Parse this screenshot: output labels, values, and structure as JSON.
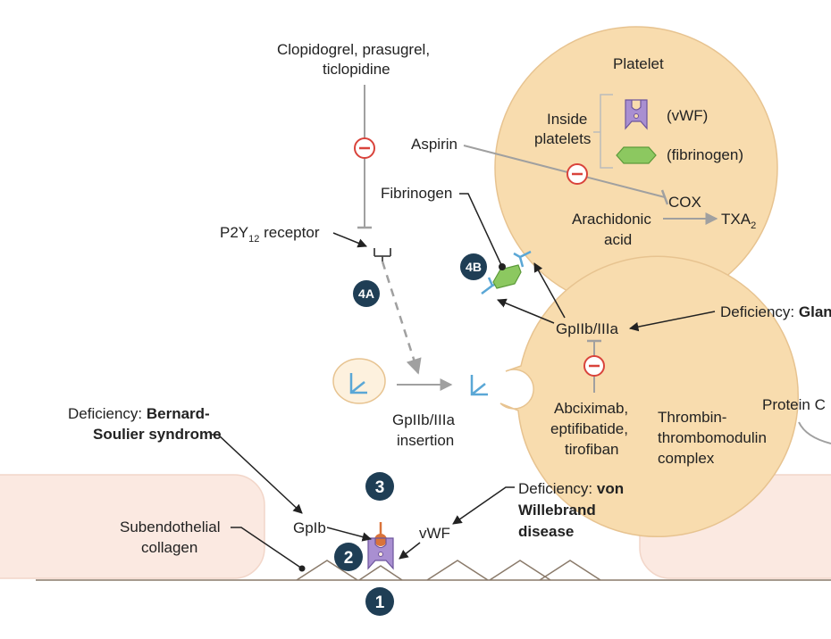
{
  "colors": {
    "platelet_fill": "#f8dcae",
    "cell_fill": "#fbe9e1",
    "inhibitor_red": "#d9433b",
    "step_badge": "#1f3e55",
    "receptor_blue": "#5aa7d6",
    "vwf_purple": "#a98fd1",
    "fibrinogen_green": "#8cc860",
    "arrow_gray": "#a0a0a0",
    "connector_orange": "#d9733a"
  },
  "labels": {
    "clopidogrel_line1": "Clopidogrel, prasugrel,",
    "clopidogrel_line2": "ticlopidine",
    "platelet_title": "Platelet",
    "inside_line1": "Inside",
    "inside_line2": "platelets",
    "vwf_granule": "(vWF)",
    "fibrinogen_granule": "(fibrinogen)",
    "aspirin": "Aspirin",
    "cox": "COX",
    "arachidonic_line1": "Arachidonic",
    "arachidonic_line2": "acid",
    "txa2_main": "TXA",
    "txa2_sub": "2",
    "fibrinogen": "Fibrinogen",
    "p2y12_main": "P2Y",
    "p2y12_sub": "12",
    "p2y12_rest": " receptor",
    "deficiency_prefix": "Deficiency: ",
    "glanzmann_bold": "Glanzmann thrombasthenia",
    "gp2b3a": "GpIIb/IIIa",
    "insertion_line1": "GpIIb/IIIa",
    "insertion_line2": "insertion",
    "abciximab_line1": "Abciximab,",
    "abciximab_line2": "eptifibatide,",
    "abciximab_line3": "tirofiban",
    "thrombin_line1": "Thrombin-",
    "thrombin_line2": "thrombomodulin",
    "thrombin_line3": "complex",
    "protein_c": "Protein C",
    "bernard_bold1": "Bernard-",
    "bernard_bold2": "Soulier syndrome",
    "vwd_bold1": "von",
    "vwd_bold2": "Willebrand",
    "vwd_bold3": "disease",
    "gp1b": "GpIb",
    "vwf": "vWF",
    "collagen_line1": "Subendothelial",
    "collagen_line2": "collagen"
  },
  "steps": {
    "step1": "1",
    "step2": "2",
    "step3": "3",
    "step4a": "4A",
    "step4b": "4B"
  }
}
